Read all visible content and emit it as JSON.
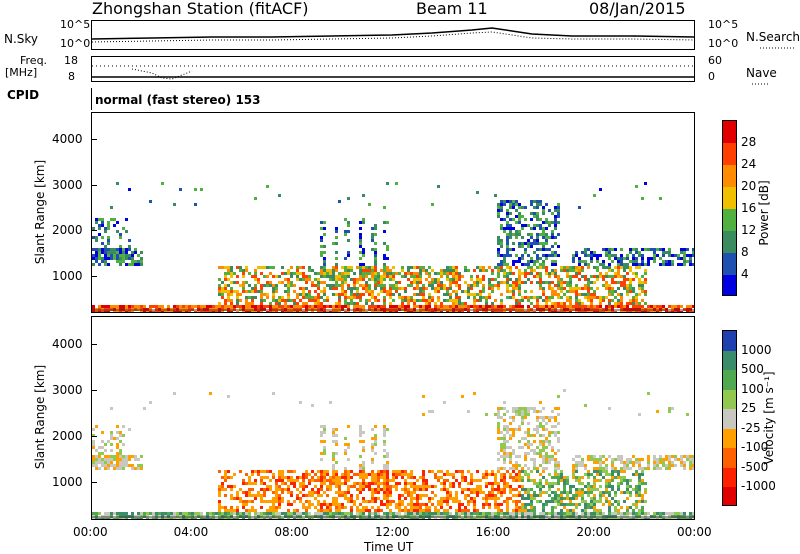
{
  "header": {
    "title": "Zhongshan Station (fitACF)",
    "beam": "Beam 11",
    "date": "08/Jan/2015"
  },
  "top_panels": {
    "nsky_label": "N.Sky",
    "nsearch_label": "N.Search",
    "nsky_ticks": [
      "10^5",
      "10^0"
    ],
    "nsearch_ticks": [
      "10^5",
      "10^0"
    ],
    "freq_label": "Freq.",
    "freq_unit": "[MHz]",
    "freq_ticks": [
      "18",
      "8"
    ],
    "nave_label": "Nave",
    "nave_ticks": [
      "60",
      "0"
    ],
    "cpid_label": "CPID",
    "cpid_text": "normal (fast stereo) 153"
  },
  "chart_data": [
    {
      "type": "heatmap",
      "title": "",
      "ylabel": "Slant Range [km]",
      "xlabel": "",
      "ylim": [
        180,
        4600
      ],
      "yticks": [
        "4000",
        "3000",
        "2000",
        "1000"
      ],
      "ytick_values": [
        4000,
        3000,
        2000,
        1000
      ],
      "colorbar_label": "Power [dB]",
      "colorbar_ticks": [
        "28",
        "24",
        "20",
        "16",
        "12",
        "8",
        "4"
      ],
      "colorbar_colors": [
        "#e00000",
        "#ff4000",
        "#ff8c00",
        "#f0c000",
        "#50b040",
        "#3a8c60",
        "#2050b0",
        "#0000e0"
      ],
      "grid": false
    },
    {
      "type": "heatmap",
      "title": "",
      "ylabel": "Slant Range [km]",
      "xlabel": "Time UT",
      "ylim": [
        180,
        4600
      ],
      "yticks": [
        "4000",
        "3000",
        "2000",
        "1000"
      ],
      "ytick_values": [
        4000,
        3000,
        2000,
        1000
      ],
      "colorbar_label": "Velocity [m s⁻¹]",
      "colorbar_ticks": [
        "1000",
        "500",
        "100",
        "25",
        "-25",
        "-100",
        "-500",
        "-1000"
      ],
      "colorbar_colors": [
        "#2040b0",
        "#3a8c6a",
        "#50a850",
        "#90c850",
        "#c8c8c0",
        "#ffa000",
        "#ff6000",
        "#ff2000",
        "#e00000"
      ],
      "xticks": [
        "00:00",
        "04:00",
        "08:00",
        "12:00",
        "16:00",
        "20:00",
        "00:00"
      ],
      "xtick_values": [
        0,
        4,
        8,
        12,
        16,
        20,
        24
      ],
      "xlim": [
        0,
        24
      ],
      "grid": false
    }
  ]
}
